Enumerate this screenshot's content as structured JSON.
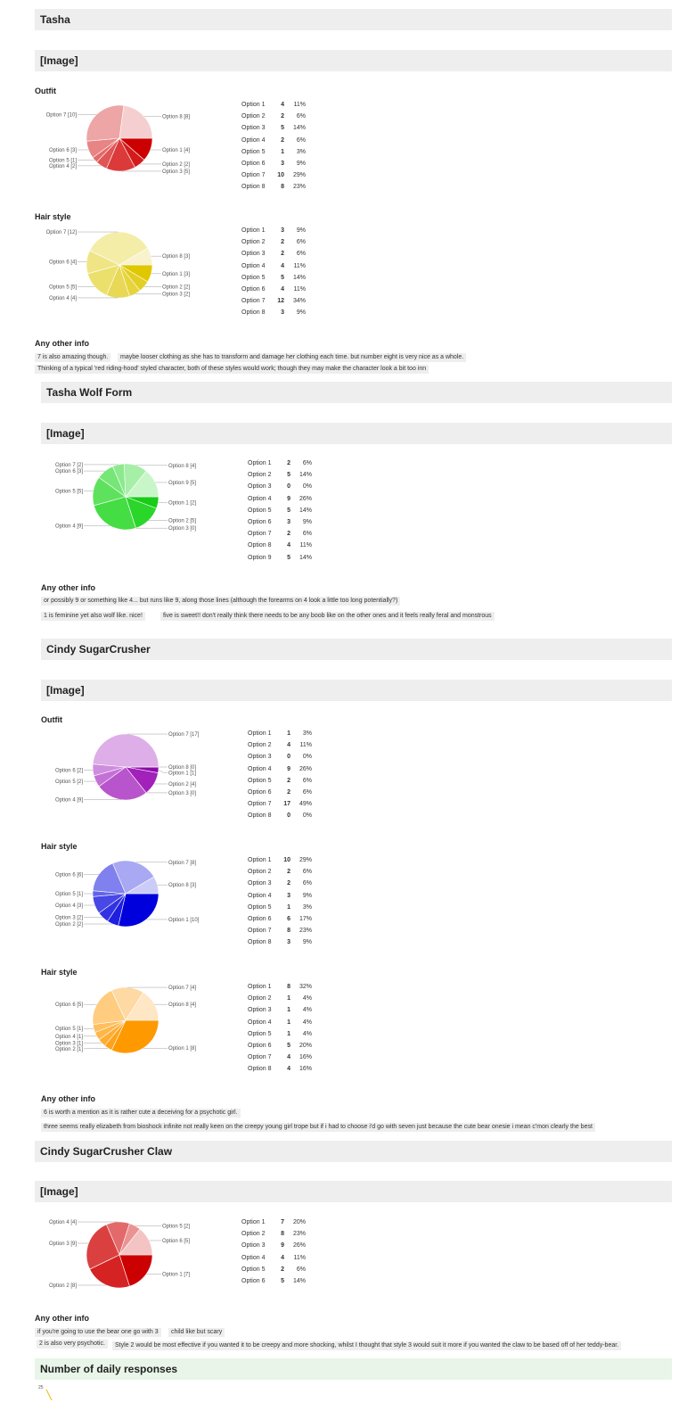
{
  "sections": [
    {
      "title": "Tasha",
      "image_label": "[Image]",
      "questions": [
        {
          "label": "Outfit",
          "chart_ref": 0
        },
        {
          "label": "Hair style",
          "chart_ref": 1
        }
      ],
      "other_info_label": "Any other info",
      "responses": [
        "7 is also amazing though.",
        "maybe looser clothing as she has to transform and damage her clothing each time. but number eight is very nice as a whole.",
        "Thinking of a typical 'red riding-hood' styled character, both of these styles would work; though they may make the character look a bit too inn"
      ]
    },
    {
      "title": "Tasha Wolf Form",
      "image_label": "[Image]",
      "questions": [
        {
          "label": "",
          "chart_ref": 2
        }
      ],
      "other_info_label": "Any other info",
      "responses": [
        "or possibly 9 or something like 4... but runs like 9, along those lines (although the forearms on 4 look a little too long potentially?)",
        "1 is feminine yet also wolf like. nice!",
        "five is sweet!! don't really think there needs to be any boob like on the other ones and it feels really feral and monstrous"
      ]
    },
    {
      "title": "Cindy SugarCrusher",
      "image_label": "[Image]",
      "questions": [
        {
          "label": "Outfit",
          "chart_ref": 3
        },
        {
          "label": "Hair style",
          "chart_ref": 4
        },
        {
          "label": "Hair style",
          "chart_ref": 5
        }
      ],
      "other_info_label": "Any other info",
      "responses": [
        "6 is worth a mention as it is rather cute a deceiving for a psychotic girl.",
        "three seems really elizabeth from bioshock infinite not really keen on the creepy young girl trope but if i had to choose i'd go with seven just because the cute bear onesie i mean c'mon clearly the best"
      ]
    },
    {
      "title": "Cindy SugarCrusher Claw",
      "image_label": "[Image]",
      "questions": [
        {
          "label": "",
          "chart_ref": 6
        }
      ],
      "other_info_label": "Any other info",
      "responses": [
        "if you're going to use the bear one go with 3",
        "child like but scary",
        "2 is also very psychotic.",
        "Style 2 would be most effective if you wanted it to be creepy and more shocking, whilst I thought that style 3 would suit it more if you wanted the claw to be based off of her teddy-bear."
      ]
    }
  ],
  "daily": {
    "title": "Number of daily responses",
    "y_top": "25"
  },
  "chart_data": [
    {
      "type": "pie",
      "categories": [
        "Option 1",
        "Option 2",
        "Option 3",
        "Option 4",
        "Option 5",
        "Option 6",
        "Option 7",
        "Option 8"
      ],
      "values": [
        4,
        2,
        5,
        2,
        1,
        3,
        10,
        8
      ],
      "percents": [
        "11%",
        "6%",
        "14%",
        "6%",
        "3%",
        "9%",
        "29%",
        "23%"
      ],
      "colors": [
        "#cc0000",
        "#d41b1b",
        "#dc3a3a",
        "#e05555",
        "#e46a6a",
        "#e98484",
        "#eea5a5",
        "#f5cfcf"
      ]
    },
    {
      "type": "pie",
      "categories": [
        "Option 1",
        "Option 2",
        "Option 3",
        "Option 4",
        "Option 5",
        "Option 6",
        "Option 7",
        "Option 8"
      ],
      "values": [
        3,
        2,
        2,
        4,
        5,
        4,
        12,
        3
      ],
      "percents": [
        "9%",
        "6%",
        "6%",
        "11%",
        "14%",
        "11%",
        "34%",
        "9%"
      ],
      "colors": [
        "#e0c800",
        "#e3cf24",
        "#e6d43c",
        "#e9d855",
        "#ece06c",
        "#efe585",
        "#f3eda8",
        "#f8f3cc"
      ]
    },
    {
      "type": "pie",
      "categories": [
        "Option 1",
        "Option 2",
        "Option 3",
        "Option 4",
        "Option 5",
        "Option 6",
        "Option 7",
        "Option 8",
        "Option 9"
      ],
      "values": [
        2,
        5,
        0,
        9,
        5,
        3,
        2,
        4,
        5
      ],
      "percents": [
        "6%",
        "14%",
        "0%",
        "26%",
        "14%",
        "9%",
        "6%",
        "11%",
        "14%"
      ],
      "colors": [
        "#18cc18",
        "#2ad62a",
        "#38d838",
        "#44dd44",
        "#5ee25e",
        "#76e676",
        "#8cea8c",
        "#a6efa6",
        "#c9f6c9"
      ]
    },
    {
      "type": "pie",
      "categories": [
        "Option 1",
        "Option 2",
        "Option 3",
        "Option 4",
        "Option 5",
        "Option 6",
        "Option 7",
        "Option 8"
      ],
      "values": [
        1,
        4,
        0,
        9,
        2,
        2,
        17,
        0
      ],
      "percents": [
        "3%",
        "11%",
        "0%",
        "26%",
        "6%",
        "6%",
        "49%",
        "0%"
      ],
      "colors": [
        "#8e0aa8",
        "#a221ba",
        "#aa30c0",
        "#b955cc",
        "#c471d6",
        "#cf8ddf",
        "#ddaee7",
        "#ead0f0"
      ]
    },
    {
      "type": "pie",
      "categories": [
        "Option 1",
        "Option 2",
        "Option 3",
        "Option 4",
        "Option 5",
        "Option 6",
        "Option 7",
        "Option 8"
      ],
      "values": [
        10,
        2,
        2,
        3,
        1,
        6,
        8,
        3
      ],
      "percents": [
        "29%",
        "6%",
        "6%",
        "9%",
        "3%",
        "17%",
        "23%",
        "9%"
      ],
      "colors": [
        "#0000dd",
        "#1f1fe0",
        "#3232e3",
        "#4848e6",
        "#6262ea",
        "#8080ee",
        "#a8a8f3",
        "#ccccf8"
      ]
    },
    {
      "type": "pie",
      "categories": [
        "Option 1",
        "Option 2",
        "Option 3",
        "Option 4",
        "Option 5",
        "Option 6",
        "Option 7",
        "Option 8"
      ],
      "values": [
        8,
        1,
        1,
        1,
        1,
        5,
        4,
        4
      ],
      "percents": [
        "32%",
        "4%",
        "4%",
        "4%",
        "4%",
        "20%",
        "16%",
        "16%"
      ],
      "colors": [
        "#ff9900",
        "#ffa31c",
        "#ffad33",
        "#ffb64a",
        "#ffbf5e",
        "#ffcc80",
        "#ffd9a3",
        "#ffe6c4"
      ]
    },
    {
      "type": "pie",
      "categories": [
        "Option 1",
        "Option 2",
        "Option 3",
        "Option 4",
        "Option 5",
        "Option 6"
      ],
      "values": [
        7,
        8,
        9,
        4,
        2,
        5
      ],
      "percents": [
        "20%",
        "23%",
        "26%",
        "11%",
        "6%",
        "14%"
      ],
      "colors": [
        "#cc0000",
        "#d52222",
        "#db4040",
        "#e26a6a",
        "#eb9393",
        "#f4c4c4"
      ]
    }
  ]
}
